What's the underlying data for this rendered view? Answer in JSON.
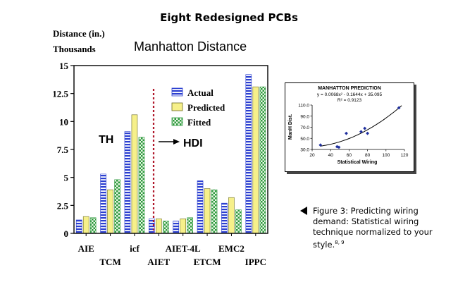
{
  "page_title": "Eight Redesigned PCBs",
  "caption": {
    "text": "Figure 3: Predicting wiring demand: Statistical wiring technique normalized to your style.",
    "refs": "8, 9"
  },
  "colors": {
    "actual": "#2b3fd0",
    "predicted": "#f6f08a",
    "fitted": "#2e9a3e",
    "divider": "#b0182b"
  },
  "chart_data": [
    {
      "type": "bar",
      "title": "Manhatton Distance",
      "ylabel": "Distance (in.)",
      "ylabel_unit": "Thousands",
      "categories": [
        "AIE",
        "TCM",
        "icf",
        "AIET",
        "AIET-4L",
        "ETCM",
        "EMC2",
        "IPPC"
      ],
      "series": [
        {
          "name": "Actual",
          "values": [
            1.2,
            5.3,
            9.1,
            1.3,
            1.1,
            4.7,
            2.7,
            14.2
          ]
        },
        {
          "name": "Predicted",
          "values": [
            1.5,
            3.9,
            10.6,
            1.3,
            1.3,
            4.0,
            3.2,
            13.1
          ]
        },
        {
          "name": "Fitted",
          "values": [
            1.4,
            4.8,
            8.6,
            1.1,
            1.4,
            3.9,
            2.1,
            13.1
          ]
        }
      ],
      "ylim": [
        0,
        15
      ],
      "yticks": [
        "0",
        "2.5",
        "5",
        "7.5",
        "10",
        "12.5",
        "15"
      ],
      "legend": "top-center",
      "annotations": [
        "TH",
        "HDI"
      ]
    },
    {
      "type": "scatter",
      "title": "MANHATTON PREDICTION",
      "equation": "y = 0.0068x² - 0.1644x + 35.095",
      "r_squared": "R² = 0.9123",
      "xlabel": "Statistical Wiring",
      "ylabel": "ManH Dist.",
      "xlim": [
        20,
        120
      ],
      "ylim": [
        30,
        110
      ],
      "xticks": [
        "20",
        "40",
        "60",
        "80",
        "100",
        "120"
      ],
      "yticks": [
        "30.0",
        "50.0",
        "70.0",
        "90.0",
        "110.0"
      ],
      "points": [
        {
          "x": 29,
          "y": 38
        },
        {
          "x": 47,
          "y": 35
        },
        {
          "x": 49,
          "y": 34
        },
        {
          "x": 57,
          "y": 59
        },
        {
          "x": 73,
          "y": 62
        },
        {
          "x": 77,
          "y": 68
        },
        {
          "x": 80,
          "y": 59
        },
        {
          "x": 114,
          "y": 105
        }
      ],
      "trendline": {
        "a": 0.0068,
        "b": -0.1644,
        "c": 35.095
      },
      "grid": false
    }
  ]
}
